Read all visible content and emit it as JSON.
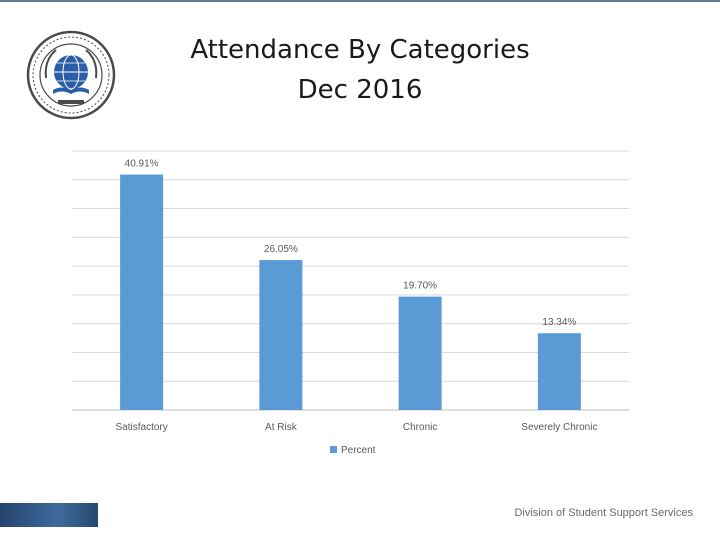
{
  "slide": {
    "title_line1": "Attendance By Categories",
    "title_line2": "Dec 2016",
    "footer": "Division of Student Support Services",
    "logo_icon": "buffalo-public-schools-seal"
  },
  "chart_data": {
    "type": "bar",
    "categories": [
      "Satisfactory",
      "At Risk",
      "Chronic",
      "Severely Chronic"
    ],
    "series": [
      {
        "name": "Percent",
        "values": [
          40.91,
          26.05,
          19.7,
          13.34
        ]
      }
    ],
    "data_labels": [
      "40.91%",
      "26.05%",
      "19.70%",
      "13.34%"
    ],
    "ylim": [
      0,
      45
    ],
    "grid": true,
    "legend_position": "bottom",
    "colors": {
      "bar": "#5b9bd5",
      "grid": "#d9d9d9",
      "text": "#595959"
    }
  }
}
